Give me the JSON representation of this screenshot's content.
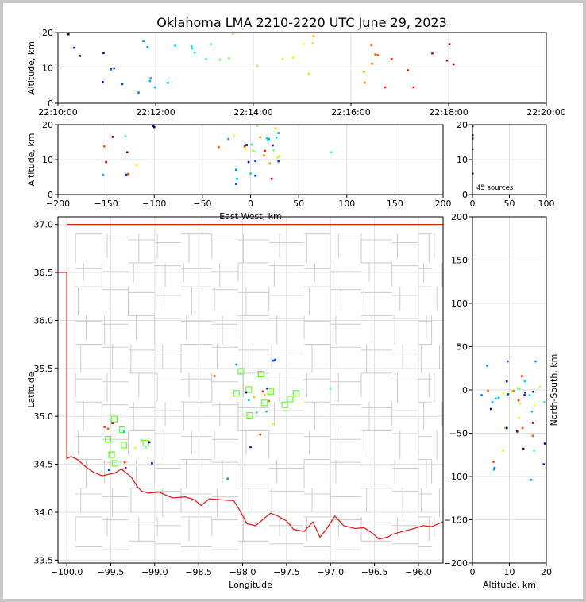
{
  "chart_data": [
    {
      "id": "time-altitude",
      "type": "scatter",
      "title": "Oklahoma LMA 2210-2220 UTC June 29, 2023",
      "xlabel": "",
      "ylabel": "Altitude, km",
      "xlim": [
        0,
        600
      ],
      "ylim": [
        0,
        20
      ],
      "x_ticks": [
        {
          "v": 0,
          "label": "22:10:00"
        },
        {
          "v": 120,
          "label": "22:12:00"
        },
        {
          "v": 240,
          "label": "22:14:00"
        },
        {
          "v": 360,
          "label": "22:16:00"
        },
        {
          "v": 480,
          "label": "22:18:00"
        },
        {
          "v": 600,
          "label": "22:20:00"
        }
      ],
      "y_ticks": [
        0,
        10,
        20
      ],
      "points": [
        [
          13,
          19.5,
          "#000080"
        ],
        [
          20,
          15.7,
          "#0000c0"
        ],
        [
          27,
          13.4,
          "#000080"
        ],
        [
          55,
          6.0,
          "#0000ff"
        ],
        [
          56,
          14.2,
          "#0000e0"
        ],
        [
          65,
          9.6,
          "#0040ff"
        ],
        [
          69,
          9.9,
          "#0040ff"
        ],
        [
          79,
          5.4,
          "#0050ff"
        ],
        [
          99,
          3.0,
          "#0080ff"
        ],
        [
          105,
          17.6,
          "#0090ff"
        ],
        [
          110,
          15.9,
          "#00a0ff"
        ],
        [
          113,
          6.3,
          "#00b0ff"
        ],
        [
          114,
          7.1,
          "#00b0ff"
        ],
        [
          119,
          4.5,
          "#00c0ff"
        ],
        [
          135,
          5.8,
          "#00c8f0"
        ],
        [
          144,
          16.3,
          "#00d8e0"
        ],
        [
          164,
          16.1,
          "#00e0d0"
        ],
        [
          165,
          15.5,
          "#10f0c0"
        ],
        [
          168,
          14.3,
          "#30f0b0"
        ],
        [
          182,
          12.5,
          "#40ffa0"
        ],
        [
          188,
          16.7,
          "#60ff90"
        ],
        [
          199,
          12.3,
          "#70ff80"
        ],
        [
          210,
          12.7,
          "#80ff70"
        ],
        [
          215,
          19.6,
          "#90ff60"
        ],
        [
          245,
          10.6,
          "#b0ff40"
        ],
        [
          276,
          12.6,
          "#d0ff30"
        ],
        [
          289,
          12.9,
          "#e0ff20"
        ],
        [
          302,
          16.8,
          "#f0ff10"
        ],
        [
          308,
          8.3,
          "#ffe000"
        ],
        [
          313,
          16.9,
          "#ffd000"
        ],
        [
          314,
          19.0,
          "#ffc000"
        ],
        [
          376,
          8.9,
          "#ffa000"
        ],
        [
          377,
          5.8,
          "#ff9000"
        ],
        [
          385,
          16.4,
          "#ff8000"
        ],
        [
          386,
          11.2,
          "#ff7000"
        ],
        [
          390,
          13.8,
          "#ff6000"
        ],
        [
          393,
          13.6,
          "#ff5000"
        ],
        [
          402,
          4.5,
          "#ff3000"
        ],
        [
          410,
          12.5,
          "#ff2000"
        ],
        [
          430,
          9.3,
          "#ff1000"
        ],
        [
          437,
          4.5,
          "#f00000"
        ],
        [
          460,
          14.1,
          "#d00000"
        ],
        [
          478,
          12.1,
          "#b00000"
        ],
        [
          481,
          16.7,
          "#900000"
        ],
        [
          486,
          11.0,
          "#800000"
        ]
      ]
    },
    {
      "id": "ew-altitude",
      "type": "scatter",
      "xlabel": "East-West, km",
      "ylabel": "Altitude, km",
      "xlim": [
        -200,
        200
      ],
      "ylim": [
        0,
        20
      ],
      "x_ticks": [
        -200,
        -150,
        -100,
        -50,
        0,
        50,
        100,
        150,
        200
      ],
      "y_ticks": [
        0,
        10,
        20
      ],
      "points": [
        [
          -152,
          13.8,
          "#ff6000"
        ],
        [
          -153,
          5.7,
          "#00c0ff"
        ],
        [
          -150,
          9.3,
          "#e00000"
        ],
        [
          -143,
          16.5,
          "#800000"
        ],
        [
          -130,
          16.7,
          "#40ffa0"
        ],
        [
          -128,
          12.1,
          "#800000"
        ],
        [
          -127,
          5.9,
          "#ff4000"
        ],
        [
          -129,
          5.7,
          "#0040ff"
        ],
        [
          -118,
          8.4,
          "#f0ff10"
        ],
        [
          -101,
          19.6,
          "#0000c0"
        ],
        [
          -100,
          19.3,
          "#000080"
        ],
        [
          -33,
          13.6,
          "#ff6000"
        ],
        [
          -23,
          15.9,
          "#00a0ff"
        ],
        [
          -17,
          16.8,
          "#f0ff10"
        ],
        [
          -15,
          7.1,
          "#0090ff"
        ],
        [
          -14,
          4.5,
          "#00c0ff"
        ],
        [
          -15,
          3.0,
          "#0060ff"
        ],
        [
          -6,
          13.8,
          "#ff2000"
        ],
        [
          -5,
          12.9,
          "#e0ff20"
        ],
        [
          -4,
          14.2,
          "#000080"
        ],
        [
          -2,
          9.3,
          "#0000c0"
        ],
        [
          0,
          6.0,
          "#00e0d0"
        ],
        [
          1,
          14.3,
          "#30f0b0"
        ],
        [
          2,
          12.6,
          "#d0ff30"
        ],
        [
          4,
          12.3,
          "#70ff80"
        ],
        [
          5,
          9.6,
          "#0040ff"
        ],
        [
          5,
          5.4,
          "#0050ff"
        ],
        [
          7,
          19.6,
          "#90ff60"
        ],
        [
          10,
          16.4,
          "#ff8000"
        ],
        [
          14,
          11.2,
          "#ff7000"
        ],
        [
          15,
          12.5,
          "#ff3000"
        ],
        [
          17,
          16.1,
          "#00d8e0"
        ],
        [
          18,
          15.5,
          "#10f0c0"
        ],
        [
          19,
          15.9,
          "#00a0ff"
        ],
        [
          20,
          8.9,
          "#ffa000"
        ],
        [
          22,
          4.5,
          "#f00000"
        ],
        [
          23,
          14.1,
          "#0000e0"
        ],
        [
          24,
          12.7,
          "#80ff70"
        ],
        [
          26,
          18.9,
          "#ffc000"
        ],
        [
          27,
          16.3,
          "#00d8e0"
        ],
        [
          28,
          10.6,
          "#b0ff40"
        ],
        [
          29,
          9.5,
          "#0040ff"
        ],
        [
          29,
          17.6,
          "#0090ff"
        ],
        [
          30,
          11.0,
          "#ffe000"
        ],
        [
          84,
          12.1,
          "#40ffa0"
        ]
      ]
    },
    {
      "id": "histogram",
      "type": "bar",
      "annotation": "45 sources",
      "xlim": [
        0,
        100
      ],
      "ylim": [
        0,
        20
      ],
      "x_ticks": [
        0,
        50,
        100
      ],
      "y_ticks": [
        0,
        10,
        20
      ],
      "points": [
        [
          1,
          6.0,
          "#000080"
        ],
        [
          1,
          13.0,
          "#000080"
        ],
        [
          1,
          16.0,
          "#000080"
        ],
        [
          1,
          17.0,
          "#000080"
        ],
        [
          1,
          19.5,
          "#000080"
        ]
      ]
    },
    {
      "id": "plan-view",
      "type": "scatter",
      "xlabel": "Longitude",
      "ylabel": "Latitude",
      "xlim": [
        -100.1,
        -95.72
      ],
      "ylim": [
        33.47,
        37.08
      ],
      "x_ticks": [
        {
          "v": -100.0,
          "label": "−100.0"
        },
        {
          "v": -99.5,
          "label": "−99.5"
        },
        {
          "v": -99.0,
          "label": "−99.0"
        },
        {
          "v": -98.5,
          "label": "−98.5"
        },
        {
          "v": -98.0,
          "label": "−98.0"
        },
        {
          "v": -97.5,
          "label": "−97.5"
        },
        {
          "v": -97.0,
          "label": "−97.0"
        },
        {
          "v": -96.5,
          "label": "−96.5"
        },
        {
          "v": -96.0,
          "label": "−96.0"
        }
      ],
      "y_ticks": [
        {
          "v": 33.5,
          "label": "33.5"
        },
        {
          "v": 34.0,
          "label": "34.0"
        },
        {
          "v": 34.5,
          "label": "34.5"
        },
        {
          "v": 35.0,
          "label": "35.0"
        },
        {
          "v": 35.5,
          "label": "35.5"
        },
        {
          "v": 36.0,
          "label": "36.0"
        },
        {
          "v": 36.5,
          "label": "36.5"
        },
        {
          "v": 37.0,
          "label": "37.0"
        }
      ],
      "stations": [
        [
          -99.53,
          34.76
        ],
        [
          -99.49,
          34.6
        ],
        [
          -99.46,
          34.97
        ],
        [
          -99.45,
          34.51
        ],
        [
          -99.37,
          34.86
        ],
        [
          -99.35,
          34.7
        ],
        [
          -99.1,
          34.72
        ],
        [
          -98.07,
          35.24
        ],
        [
          -98.02,
          35.47
        ],
        [
          -97.93,
          35.28
        ],
        [
          -97.92,
          35.01
        ],
        [
          -97.79,
          35.44
        ],
        [
          -97.75,
          35.14
        ],
        [
          -97.68,
          35.26
        ],
        [
          -97.52,
          35.12
        ],
        [
          -97.46,
          35.18
        ],
        [
          -97.39,
          35.24
        ]
      ],
      "points": [
        [
          -99.57,
          34.89,
          "#ff2000"
        ],
        [
          -99.53,
          34.87,
          "#ff6000"
        ],
        [
          -99.52,
          34.44,
          "#0040ff"
        ],
        [
          -99.48,
          34.93,
          "#800000"
        ],
        [
          -99.35,
          34.84,
          "#00c0ff"
        ],
        [
          -99.34,
          34.52,
          "#ff4000"
        ],
        [
          -99.33,
          34.46,
          "#b00000"
        ],
        [
          -99.22,
          34.67,
          "#f0ff10"
        ],
        [
          -99.15,
          34.75,
          "#40ffa0"
        ],
        [
          -99.1,
          34.68,
          "#80ff70"
        ],
        [
          -99.06,
          34.73,
          "#000080"
        ],
        [
          -99.03,
          34.51,
          "#0000c0"
        ],
        [
          -98.32,
          35.42,
          "#ff6000"
        ],
        [
          -98.17,
          34.35,
          "#00a0ff"
        ],
        [
          -98.07,
          35.54,
          "#0090ff"
        ],
        [
          -97.96,
          35.25,
          "#000080"
        ],
        [
          -97.93,
          35.17,
          "#00d8e0"
        ],
        [
          -97.91,
          34.68,
          "#0000e0"
        ],
        [
          -97.87,
          35.2,
          "#ffc000"
        ],
        [
          -97.84,
          35.04,
          "#30f0b0"
        ],
        [
          -97.8,
          34.81,
          "#ff3000"
        ],
        [
          -97.77,
          35.26,
          "#ff2000"
        ],
        [
          -97.75,
          35.22,
          "#ffa000"
        ],
        [
          -97.73,
          35.05,
          "#00c0ff"
        ],
        [
          -97.72,
          35.29,
          "#0000c0"
        ],
        [
          -97.7,
          35.16,
          "#ff7000"
        ],
        [
          -97.68,
          35.27,
          "#d0ff30"
        ],
        [
          -97.66,
          34.92,
          "#e0ff20"
        ],
        [
          -97.65,
          35.58,
          "#0040ff"
        ],
        [
          -97.63,
          35.59,
          "#0050ff"
        ],
        [
          -97.0,
          35.29,
          "#40ffa0"
        ]
      ]
    },
    {
      "id": "altitude-ns",
      "type": "scatter",
      "xlabel": "Altitude, km",
      "ylabel": "North-South, km",
      "xlim": [
        0,
        20
      ],
      "ylim": [
        -200,
        200
      ],
      "x_ticks": [
        0,
        10,
        20
      ],
      "y_ticks": [
        -200,
        -150,
        -100,
        -50,
        0,
        50,
        100,
        150,
        200
      ],
      "points": [
        [
          2.5,
          -6,
          "#0080ff"
        ],
        [
          4.0,
          28,
          "#0090ff"
        ],
        [
          4.2,
          -1,
          "#ff6000"
        ],
        [
          5.0,
          -22,
          "#0000c0"
        ],
        [
          5.4,
          -14,
          "#00c0ff"
        ],
        [
          5.7,
          -83,
          "#ff4000"
        ],
        [
          5.8,
          -92,
          "#00c0ff"
        ],
        [
          6.0,
          -90,
          "#0060ff"
        ],
        [
          6.3,
          -10,
          "#00b0ff"
        ],
        [
          7.1,
          -9,
          "#00b0ff"
        ],
        [
          8.3,
          -70,
          "#ffe000"
        ],
        [
          8.4,
          -4,
          "#f0ff10"
        ],
        [
          8.9,
          -44,
          "#ffa000"
        ],
        [
          9.3,
          -44,
          "#000080"
        ],
        [
          9.3,
          10,
          "#0000c0"
        ],
        [
          9.5,
          33,
          "#0040ff"
        ],
        [
          9.6,
          -5,
          "#0040ff"
        ],
        [
          10.6,
          -2,
          "#b0ff40"
        ],
        [
          11.0,
          -1,
          "#ffe000"
        ],
        [
          11.2,
          -1,
          "#ff7000"
        ],
        [
          12.1,
          -48,
          "#800000"
        ],
        [
          12.3,
          2,
          "#70ff80"
        ],
        [
          12.5,
          -12,
          "#ff3000"
        ],
        [
          12.6,
          -32,
          "#d0ff30"
        ],
        [
          12.7,
          1,
          "#80ff70"
        ],
        [
          12.9,
          -16,
          "#e0ff20"
        ],
        [
          13.4,
          16,
          "#ff2000"
        ],
        [
          13.6,
          -44,
          "#ff6000"
        ],
        [
          13.8,
          -68,
          "#800000"
        ],
        [
          14.1,
          -6,
          "#0000e0"
        ],
        [
          14.2,
          10,
          "#00d8e0"
        ],
        [
          14.3,
          -3,
          "#000080"
        ],
        [
          15.5,
          -6,
          "#10f0c0"
        ],
        [
          15.9,
          -104,
          "#00a0ff"
        ],
        [
          16.1,
          -25,
          "#00d8e0"
        ],
        [
          16.3,
          -53,
          "#ff6000"
        ],
        [
          16.4,
          -38,
          "#800000"
        ],
        [
          16.5,
          -2,
          "#000080"
        ],
        [
          16.7,
          -70,
          "#40ffa0"
        ],
        [
          16.8,
          -18,
          "#f0ff10"
        ],
        [
          17.1,
          33,
          "#00b0ff"
        ],
        [
          18.3,
          4,
          "#e0ff20"
        ],
        [
          19.3,
          -86,
          "#000080"
        ],
        [
          19.5,
          -14,
          "#40ffa0"
        ],
        [
          19.6,
          -62,
          "#0000c0"
        ]
      ]
    }
  ]
}
